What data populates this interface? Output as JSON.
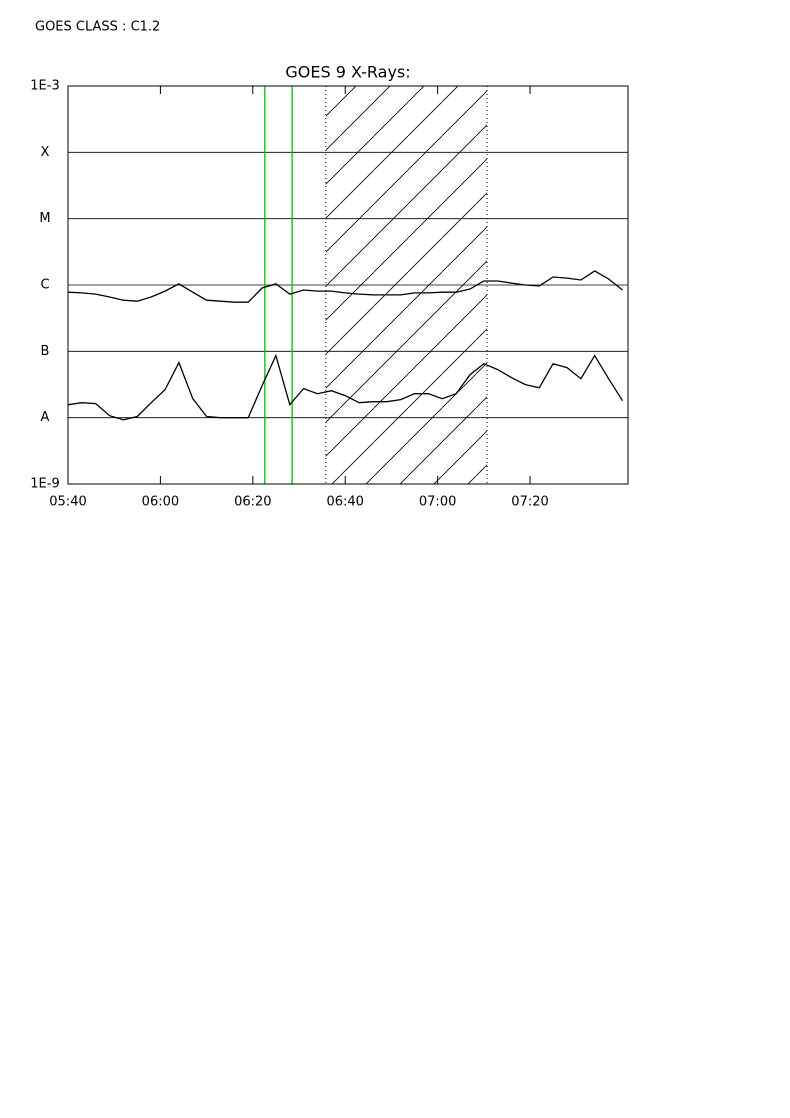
{
  "chart_data": {
    "type": "line",
    "title": "GOES 9 X-Rays:",
    "annotation": "GOES CLASS : C1.2",
    "log_scale": true,
    "grid": true,
    "x": [
      340,
      343,
      346,
      349,
      352,
      355,
      358,
      361,
      364,
      367,
      370,
      373,
      376,
      379,
      382,
      385,
      388,
      391,
      394,
      397,
      400,
      403,
      406,
      409,
      412,
      415,
      418,
      421,
      424,
      427,
      430,
      433,
      436,
      439,
      442,
      445,
      448,
      451,
      454,
      457,
      460
    ],
    "series": [
      {
        "color": "#000000",
        "values": [
          7.8e-07,
          7.6e-07,
          7.3e-07,
          6.6e-07,
          5.9e-07,
          5.7e-07,
          6.6e-07,
          8.1e-07,
          1.04e-06,
          7.8e-07,
          5.9e-07,
          5.7e-07,
          5.5e-07,
          5.5e-07,
          9e-07,
          1.04e-06,
          7.3e-07,
          8.4e-07,
          8.1e-07,
          8.1e-07,
          7.6e-07,
          7.3e-07,
          7.1e-07,
          7.1e-07,
          7.1e-07,
          7.6e-07,
          7.6e-07,
          7.8e-07,
          7.8e-07,
          8.7e-07,
          1.15e-06,
          1.15e-06,
          1.07e-06,
          1e-06,
          9.7e-07,
          1.32e-06,
          1.27e-06,
          1.19e-06,
          1.63e-06,
          1.23e-06,
          8.4e-07
        ]
      },
      {
        "color": "#000000",
        "values": [
          1.57e-08,
          1.68e-08,
          1.63e-08,
          1.07e-08,
          9.3e-09,
          1.04e-08,
          1.68e-08,
          2.64e-08,
          6.76e-08,
          1.93e-08,
          1.04e-08,
          1e-08,
          1e-08,
          1e-08,
          3.04e-08,
          8.61e-08,
          1.57e-08,
          2.74e-08,
          2.3e-08,
          2.55e-08,
          2.15e-08,
          1.68e-08,
          1.74e-08,
          1.74e-08,
          1.87e-08,
          2.3e-08,
          2.3e-08,
          1.93e-08,
          2.3e-08,
          4.45e-08,
          6.52e-08,
          5.3e-08,
          4.01e-08,
          3.15e-08,
          2.83e-08,
          6.52e-08,
          5.68e-08,
          3.87e-08,
          8.61e-08,
          3.87e-08,
          1.8e-08
        ]
      }
    ],
    "xlim": [
      340,
      461.2
    ],
    "xticks": [
      {
        "value": 340,
        "label": "05:40"
      },
      {
        "value": 360,
        "label": "06:00"
      },
      {
        "value": 380,
        "label": "06:20"
      },
      {
        "value": 400,
        "label": "06:40"
      },
      {
        "value": 420,
        "label": "07:00"
      },
      {
        "value": 440,
        "label": "07:20"
      }
    ],
    "ylim": [
      1e-09,
      0.001
    ],
    "yticks": [
      {
        "value": 1e-09,
        "label": "1E-9"
      },
      {
        "value": 1e-08,
        "label": "A"
      },
      {
        "value": 1e-07,
        "label": "B"
      },
      {
        "value": 1e-06,
        "label": "C"
      },
      {
        "value": 1e-05,
        "label": "M"
      },
      {
        "value": 0.0001,
        "label": "X"
      },
      {
        "value": 0.001,
        "label": "1E-3"
      }
    ],
    "markers": {
      "x": [
        382.6,
        388.5
      ],
      "color": "#00c000"
    },
    "shaded_range": [
      395.8,
      430.7
    ]
  }
}
